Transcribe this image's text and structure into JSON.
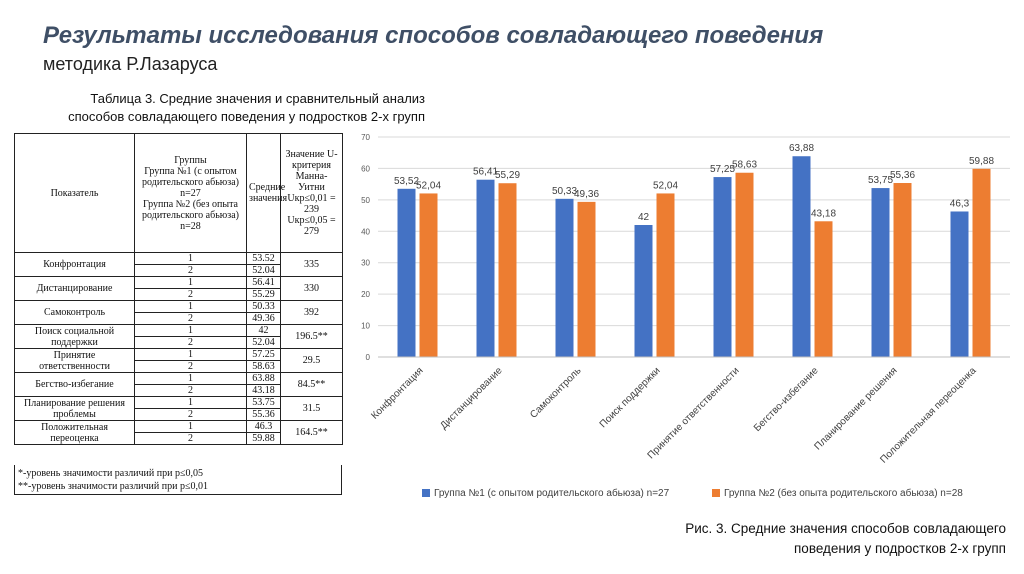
{
  "header": {
    "title": "Результаты исследования способов совладающего поведения",
    "subtitle": "методика Р.Лазаруса"
  },
  "table_caption": {
    "line1": "Таблица 3. Средние значения и сравнительный анализ",
    "line2": "способов совладающего поведения у подростков 2-х групп"
  },
  "table": {
    "head_indicator": "Показатель",
    "head_groups": "Группы\nГруппа №1 (с опытом родительского абьюза) n=27\nГруппа №2 (без опыта родительского абьюза) n=28",
    "head_mean": "Средние значения",
    "head_u": "Значение U-критерия Манна-Уитни Uкр≤0,01 = 239 Uкр≤0,05 = 279",
    "rows": [
      {
        "name": "Конфронтация",
        "g1": "1",
        "v1": "53.52",
        "g2": "2",
        "v2": "52.04",
        "u": "335"
      },
      {
        "name": "Дистанцирование",
        "g1": "1",
        "v1": "56.41",
        "g2": "2",
        "v2": "55.29",
        "u": "330"
      },
      {
        "name": "Самоконтроль",
        "g1": "1",
        "v1": "50.33",
        "g2": "2",
        "v2": "49.36",
        "u": "392"
      },
      {
        "name": "Поиск социальной поддержки",
        "g1": "1",
        "v1": "42",
        "g2": "2",
        "v2": "52.04",
        "u": "196.5**"
      },
      {
        "name": "Принятие ответственности",
        "g1": "1",
        "v1": "57.25",
        "g2": "2",
        "v2": "58.63",
        "u": "29.5"
      },
      {
        "name": "Бегство-избегание",
        "g1": "1",
        "v1": "63.88",
        "g2": "2",
        "v2": "43.18",
        "u": "84.5**"
      },
      {
        "name": "Планирование решения проблемы",
        "g1": "1",
        "v1": "53.75",
        "g2": "2",
        "v2": "55.36",
        "u": "31.5"
      },
      {
        "name": "Положительная переоценка",
        "g1": "1",
        "v1": "46.3",
        "g2": "2",
        "v2": "59.88",
        "u": "164.5**"
      }
    ],
    "footnote1": "*-уровень значимости различий при р≤0,05",
    "footnote2": "**-уровень значимости различий при р≤0,01"
  },
  "chart_data": {
    "type": "bar",
    "title": "",
    "categories": [
      "Конфронтация",
      "Дистанцирование",
      "Самоконтроль",
      "Поиск поддержки",
      "Принятие ответственности",
      "Бегство-избегание",
      "Планирование решения",
      "Положительная переоценка"
    ],
    "series": [
      {
        "name": "Группа №1 (с опытом родительского абьюза) n=27",
        "color": "#4472c4",
        "values": [
          53.52,
          56.41,
          50.33,
          42,
          57.25,
          63.88,
          53.75,
          46.3
        ],
        "labels": [
          "53,52",
          "56,41",
          "50,33",
          "42",
          "57,25",
          "63,88",
          "53,75",
          "46,3"
        ]
      },
      {
        "name": "Группа №2 (без опыта родительского абьюза) n=28",
        "color": "#ed7d31",
        "values": [
          52.04,
          55.29,
          49.36,
          52.04,
          58.63,
          43.18,
          55.36,
          59.88
        ],
        "labels": [
          "52,04",
          "55,29",
          "49,36",
          "52,04",
          "58,63",
          "43,18",
          "55,36",
          "59,88"
        ]
      }
    ],
    "ylim": [
      0,
      70
    ],
    "yticks": [
      0,
      10,
      20,
      30,
      40,
      50,
      60,
      70
    ],
    "xlabel": "",
    "ylabel": "",
    "grid": true,
    "legend": "bottom"
  },
  "figure_caption": {
    "line1": "Рис. 3. Средние значения способов совладающего",
    "line2": "поведения  у подростков 2-х групп"
  }
}
